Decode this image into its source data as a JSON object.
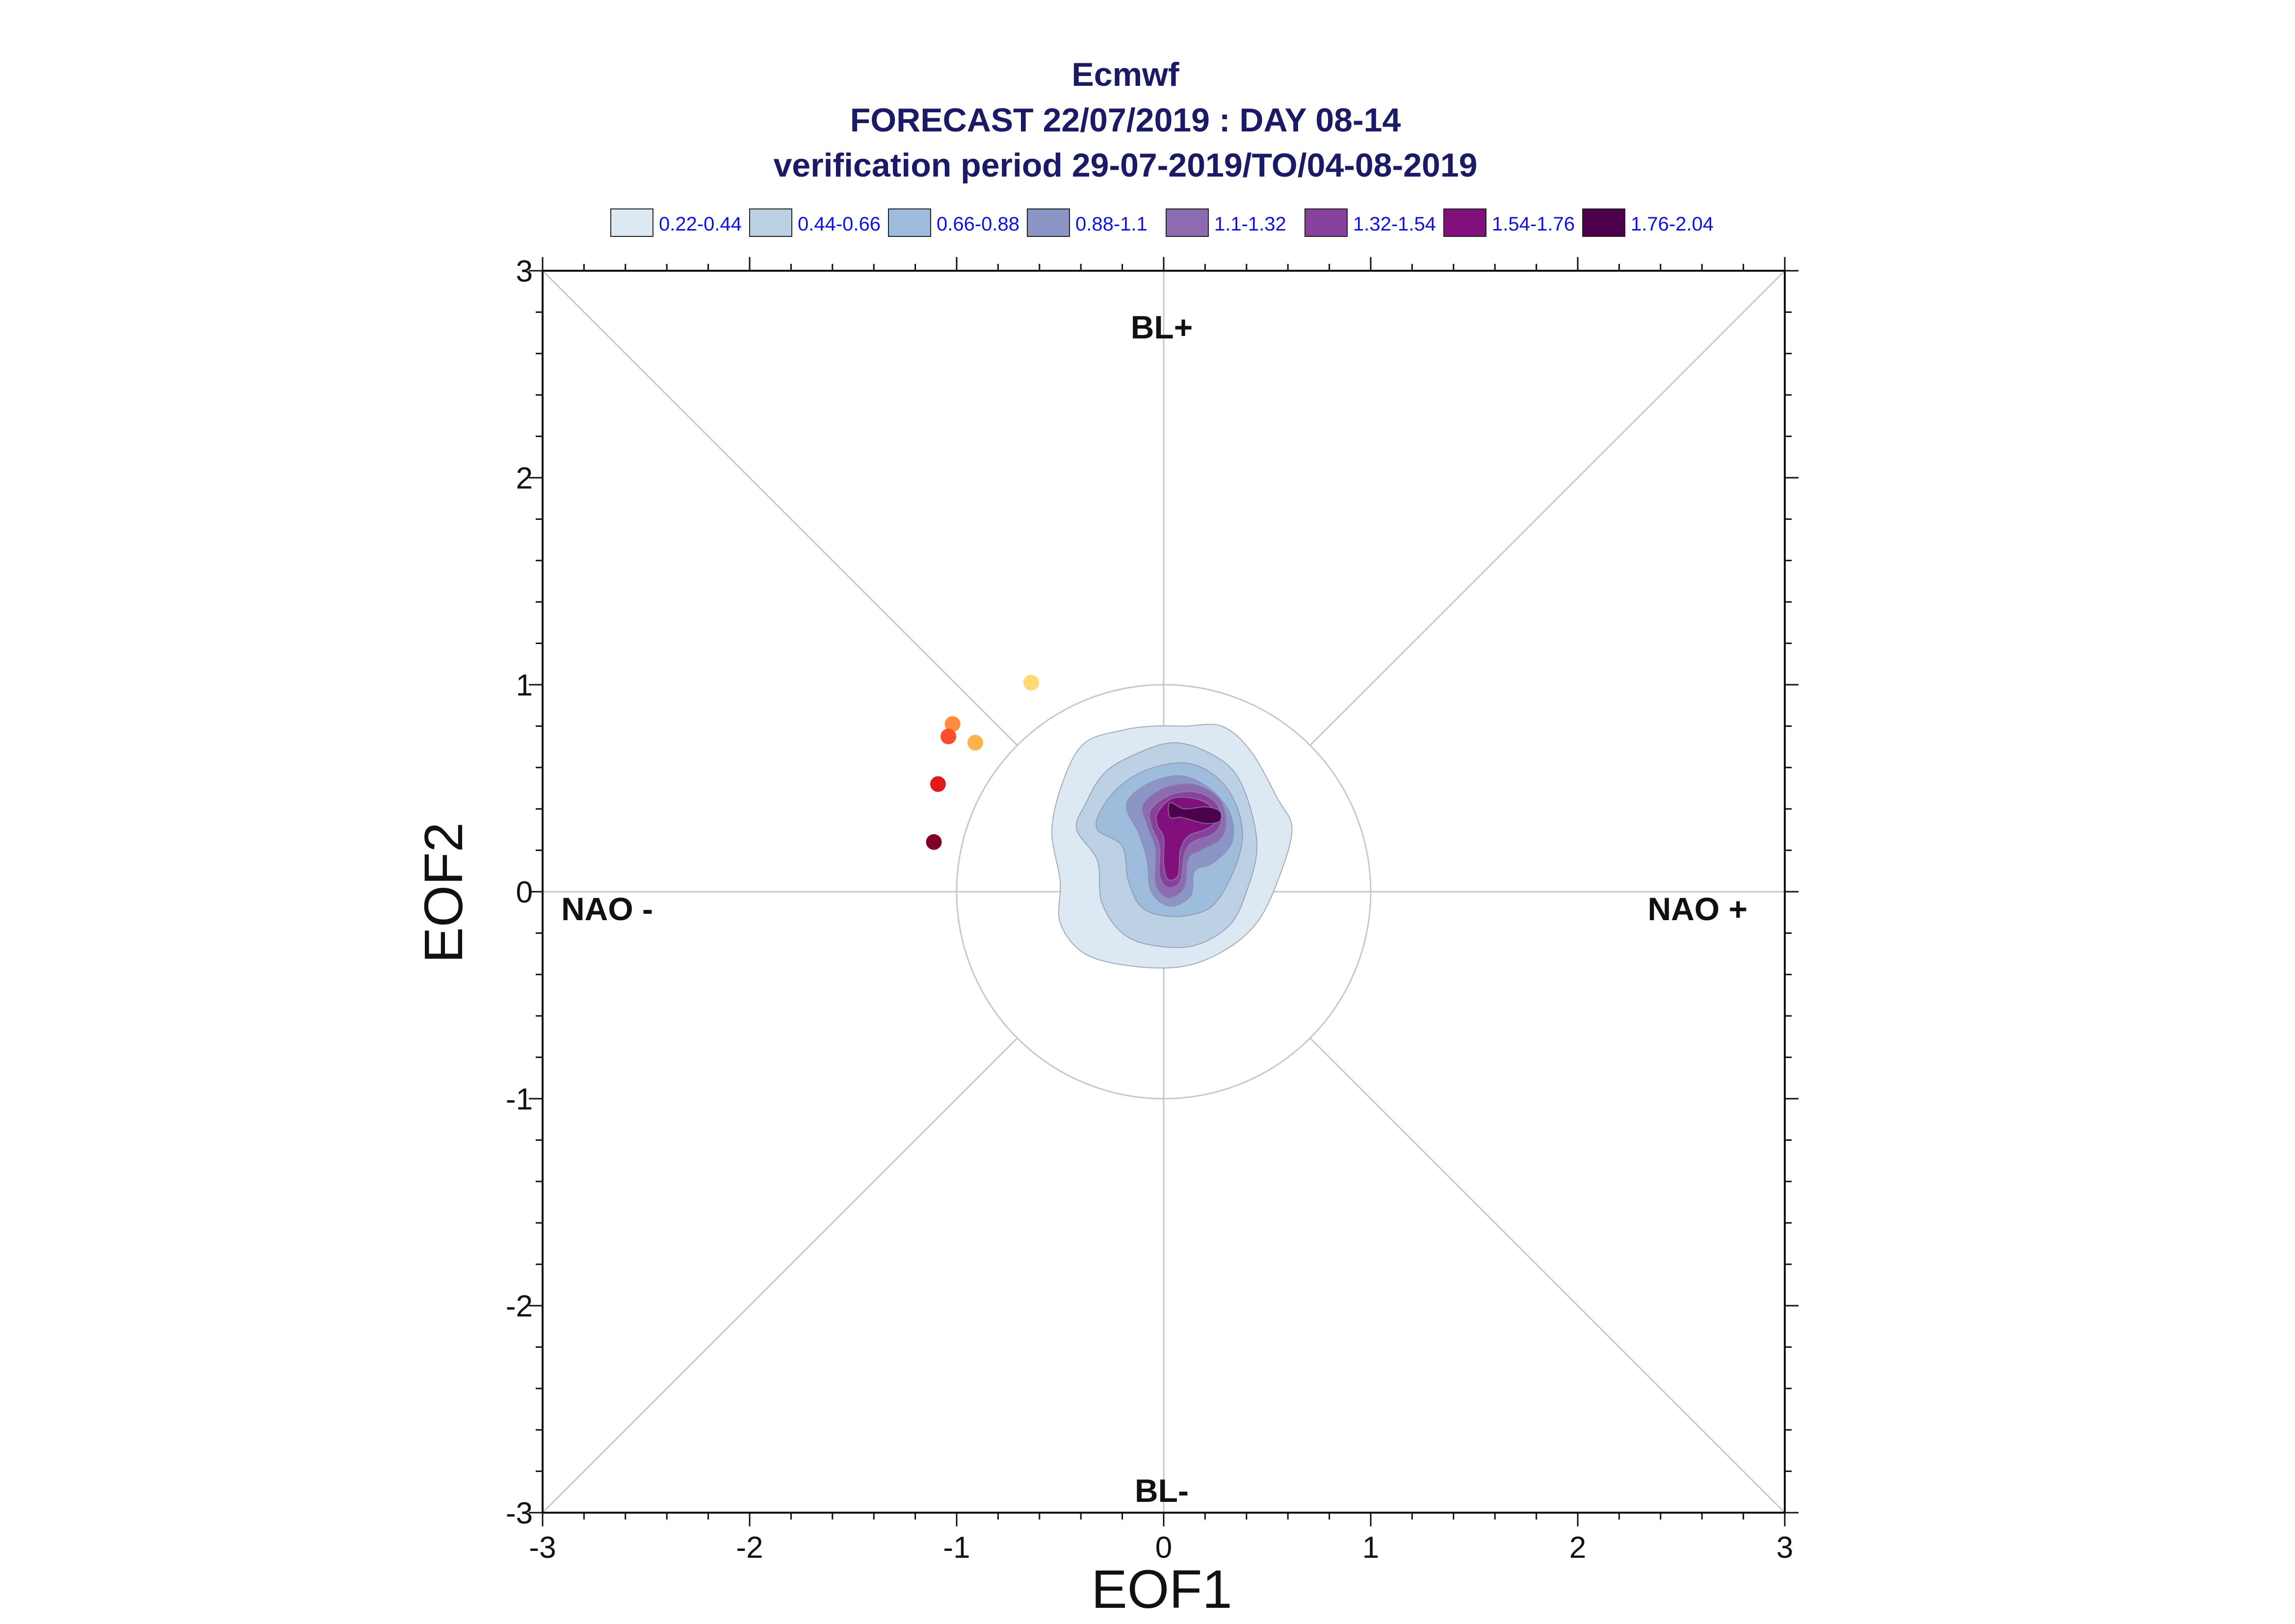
{
  "chart_data": {
    "type": "scatter",
    "title": "Ecmwf",
    "subtitle_lines": [
      "FORECAST 22/07/2019 : DAY 08-14",
      "verification period 29-07-2019/TO/04-08-2019"
    ],
    "xlabel": "EOF1",
    "ylabel": "EOF2",
    "xlim": [
      -3,
      3
    ],
    "ylim": [
      -3,
      3
    ],
    "x_ticks": [
      "-3",
      "-2",
      "-1",
      "0",
      "1",
      "2",
      "3"
    ],
    "y_ticks": [
      "3",
      "2",
      "1",
      "0",
      "-1",
      "-2",
      "-3"
    ],
    "reference_circle_radius": 1,
    "regime_labels": {
      "top": "BL+",
      "bottom": "BL-",
      "left": "NAO -",
      "right": "NAO +"
    },
    "legend": [
      {
        "label": "0.22-0.44",
        "color": "#dce9f2"
      },
      {
        "label": "0.44-0.66",
        "color": "#bdd1e4"
      },
      {
        "label": "0.66-0.88",
        "color": "#9ebcdb"
      },
      {
        "label": "0.88-1.1",
        "color": "#8c96c6"
      },
      {
        "label": "1.1-1.32",
        "color": "#8c6bb1"
      },
      {
        "label": "1.32-1.54",
        "color": "#88419d"
      },
      {
        "label": "1.54-1.76",
        "color": "#810f7c"
      },
      {
        "label": "1.76-2.04",
        "color": "#4d004b"
      }
    ],
    "density_levels": [
      {
        "range": "0.22-0.44",
        "color": "#dce9f2",
        "outline": [
          [
            -0.48,
            0.55
          ],
          [
            -0.38,
            0.72
          ],
          [
            -0.2,
            0.78
          ],
          [
            -0.05,
            0.8
          ],
          [
            0.1,
            0.8
          ],
          [
            0.28,
            0.8
          ],
          [
            0.42,
            0.68
          ],
          [
            0.55,
            0.45
          ],
          [
            0.62,
            0.3
          ],
          [
            0.55,
            0.05
          ],
          [
            0.45,
            -0.15
          ],
          [
            0.3,
            -0.28
          ],
          [
            0.1,
            -0.36
          ],
          [
            -0.15,
            -0.36
          ],
          [
            -0.38,
            -0.3
          ],
          [
            -0.5,
            -0.15
          ],
          [
            -0.5,
            0.05
          ],
          [
            -0.54,
            0.3
          ]
        ]
      },
      {
        "range": "0.44-0.66",
        "color": "#bdd1e4",
        "outline": [
          [
            -0.38,
            0.42
          ],
          [
            -0.28,
            0.58
          ],
          [
            -0.1,
            0.68
          ],
          [
            0.05,
            0.72
          ],
          [
            0.2,
            0.68
          ],
          [
            0.34,
            0.58
          ],
          [
            0.42,
            0.4
          ],
          [
            0.45,
            0.2
          ],
          [
            0.4,
            0.0
          ],
          [
            0.32,
            -0.16
          ],
          [
            0.15,
            -0.26
          ],
          [
            -0.05,
            -0.26
          ],
          [
            -0.2,
            -0.2
          ],
          [
            -0.3,
            -0.05
          ],
          [
            -0.32,
            0.15
          ],
          [
            -0.42,
            0.3
          ]
        ]
      },
      {
        "range": "0.66-0.88",
        "color": "#9ebcdb",
        "outline": [
          [
            -0.3,
            0.4
          ],
          [
            -0.2,
            0.52
          ],
          [
            -0.05,
            0.6
          ],
          [
            0.12,
            0.62
          ],
          [
            0.26,
            0.55
          ],
          [
            0.35,
            0.42
          ],
          [
            0.38,
            0.25
          ],
          [
            0.32,
            0.06
          ],
          [
            0.22,
            -0.08
          ],
          [
            0.05,
            -0.12
          ],
          [
            -0.1,
            -0.08
          ],
          [
            -0.17,
            0.05
          ],
          [
            -0.2,
            0.22
          ],
          [
            -0.32,
            0.3
          ]
        ]
      },
      {
        "range": "0.88-1.1",
        "color": "#8c96c6",
        "outline": [
          [
            -0.18,
            0.42
          ],
          [
            -0.08,
            0.52
          ],
          [
            0.08,
            0.56
          ],
          [
            0.22,
            0.5
          ],
          [
            0.32,
            0.38
          ],
          [
            0.33,
            0.24
          ],
          [
            0.24,
            0.14
          ],
          [
            0.15,
            0.1
          ],
          [
            0.13,
            -0.02
          ],
          [
            0.03,
            -0.07
          ],
          [
            -0.06,
            0.0
          ],
          [
            -0.08,
            0.15
          ],
          [
            -0.12,
            0.28
          ]
        ]
      },
      {
        "range": "1.1-1.32",
        "color": "#8c6bb1",
        "outline": [
          [
            -0.1,
            0.42
          ],
          [
            0.0,
            0.5
          ],
          [
            0.14,
            0.52
          ],
          [
            0.26,
            0.46
          ],
          [
            0.3,
            0.36
          ],
          [
            0.28,
            0.26
          ],
          [
            0.18,
            0.2
          ],
          [
            0.12,
            0.16
          ],
          [
            0.1,
            0.02
          ],
          [
            0.02,
            -0.03
          ],
          [
            -0.04,
            0.04
          ],
          [
            -0.04,
            0.2
          ],
          [
            -0.08,
            0.32
          ]
        ]
      },
      {
        "range": "1.32-1.54",
        "color": "#88419d",
        "outline": [
          [
            -0.06,
            0.4
          ],
          [
            0.04,
            0.47
          ],
          [
            0.16,
            0.48
          ],
          [
            0.25,
            0.43
          ],
          [
            0.28,
            0.35
          ],
          [
            0.24,
            0.28
          ],
          [
            0.14,
            0.24
          ],
          [
            0.1,
            0.18
          ],
          [
            0.08,
            0.05
          ],
          [
            0.02,
            0.02
          ],
          [
            -0.02,
            0.08
          ],
          [
            -0.02,
            0.22
          ],
          [
            -0.06,
            0.32
          ]
        ]
      },
      {
        "range": "1.54-1.76",
        "color": "#810f7c",
        "outline": [
          [
            -0.03,
            0.38
          ],
          [
            0.04,
            0.45
          ],
          [
            0.15,
            0.45
          ],
          [
            0.23,
            0.41
          ],
          [
            0.25,
            0.34
          ],
          [
            0.2,
            0.3
          ],
          [
            0.12,
            0.27
          ],
          [
            0.08,
            0.2
          ],
          [
            0.07,
            0.08
          ],
          [
            0.02,
            0.06
          ],
          [
            0.0,
            0.14
          ],
          [
            0.0,
            0.26
          ],
          [
            -0.03,
            0.32
          ]
        ]
      },
      {
        "range": "1.76-2.04",
        "color": "#4d004b",
        "outline": [
          [
            0.03,
            0.43
          ],
          [
            0.1,
            0.4
          ],
          [
            0.2,
            0.41
          ],
          [
            0.27,
            0.39
          ],
          [
            0.27,
            0.34
          ],
          [
            0.2,
            0.33
          ],
          [
            0.12,
            0.35
          ],
          [
            0.08,
            0.36
          ],
          [
            0.03,
            0.36
          ]
        ]
      }
    ],
    "points": [
      {
        "x": -0.64,
        "y": 1.01,
        "color": "#fed976"
      },
      {
        "x": -0.91,
        "y": 0.72,
        "color": "#feb24c"
      },
      {
        "x": -1.02,
        "y": 0.81,
        "color": "#fd8d3c"
      },
      {
        "x": -1.04,
        "y": 0.75,
        "color": "#fc4e2a"
      },
      {
        "x": -1.09,
        "y": 0.52,
        "color": "#e31a1c"
      },
      {
        "x": -1.11,
        "y": 0.24,
        "color": "#800026"
      }
    ]
  }
}
